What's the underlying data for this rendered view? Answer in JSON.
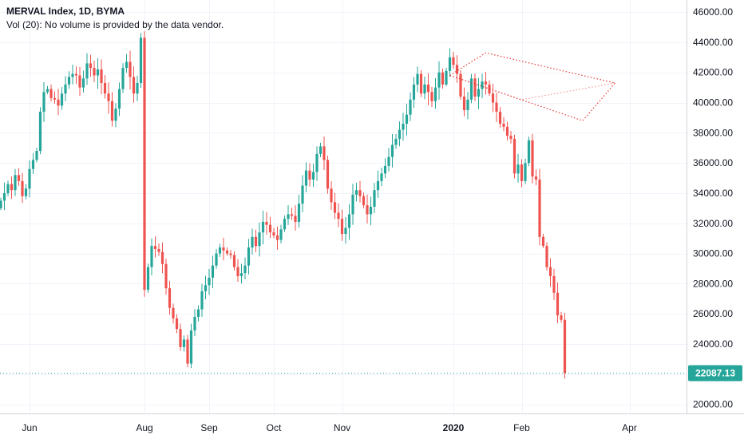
{
  "header": {
    "symbol_line": "MERVAL Index, 1D, BYMA",
    "volume_line": "Vol (20): No volume is provided by the data vendor."
  },
  "price_tag": {
    "label": "22087.13",
    "value": 22087.13,
    "color": "#26a69a"
  },
  "colors": {
    "up": "#26a69a",
    "down": "#ef5350",
    "pattern": "#e53935",
    "grid": "#f0f3fa",
    "axis_text": "#131722"
  },
  "pattern": {
    "name": "diamond-pattern",
    "points": [
      [
        125,
        41800
      ],
      [
        135,
        43300
      ],
      [
        145,
        40200
      ],
      [
        162,
        38800
      ],
      [
        171,
        41300
      ]
    ]
  },
  "chart_data": {
    "type": "candlestick",
    "title": "MERVAL Index, 1D, BYMA",
    "ylim": [
      19400,
      46800
    ],
    "y_ticks": [
      20000,
      22000,
      24000,
      26000,
      28000,
      30000,
      32000,
      34000,
      36000,
      38000,
      40000,
      42000,
      44000,
      46000
    ],
    "y_tick_labels": [
      "20000.00",
      "22000.00",
      "24000.00",
      "26000.00",
      "28000.00",
      "30000.00",
      "32000.00",
      "34000.00",
      "36000.00",
      "38000.00",
      "40000.00",
      "42000.00",
      "44000.00",
      "46000.00"
    ],
    "x_ticks": [
      {
        "label": "Jun",
        "index": 8
      },
      {
        "label": "Aug",
        "index": 40
      },
      {
        "label": "Sep",
        "index": 58
      },
      {
        "label": "Oct",
        "index": 76
      },
      {
        "label": "Nov",
        "index": 95
      },
      {
        "label": "2020",
        "index": 126
      },
      {
        "label": "Feb",
        "index": 145
      },
      {
        "label": "Apr",
        "index": 175
      }
    ],
    "last_value": 22087.13,
    "close": [
      33500,
      34000,
      34600,
      34200,
      35200,
      34800,
      33800,
      34300,
      35600,
      36200,
      36800,
      39400,
      40700,
      40900,
      40300,
      40200,
      39800,
      40600,
      41200,
      41700,
      41900,
      41800,
      41000,
      41600,
      42600,
      42300,
      41800,
      42200,
      41300,
      40600,
      40100,
      38800,
      39600,
      40900,
      42300,
      42700,
      41700,
      40600,
      41300,
      44300,
      27600,
      29100,
      30500,
      30300,
      30100,
      29300,
      27700,
      26400,
      25700,
      25000,
      23800,
      24300,
      22700,
      24900,
      25800,
      26300,
      27500,
      27900,
      28400,
      29200,
      30000,
      30400,
      30200,
      30000,
      29900,
      29100,
      28500,
      28700,
      29200,
      30400,
      31100,
      30500,
      31400,
      32100,
      31900,
      31400,
      31200,
      30900,
      31600,
      32300,
      32600,
      32500,
      32100,
      33300,
      34500,
      35500,
      34900,
      35400,
      36600,
      37100,
      36200,
      34300,
      33400,
      32700,
      32300,
      31300,
      31700,
      32600,
      33900,
      34200,
      33800,
      33200,
      32600,
      33100,
      34200,
      34800,
      35300,
      35800,
      36400,
      37200,
      37600,
      38200,
      38600,
      39200,
      40200,
      41200,
      41900,
      40600,
      41200,
      40700,
      40100,
      41000,
      42000,
      41200,
      42100,
      43000,
      42500,
      41900,
      40400,
      39500,
      40200,
      41600,
      40400,
      40900,
      41400,
      41200,
      40600,
      40000,
      39400,
      38600,
      38400,
      37800,
      37600,
      35300,
      35900,
      34800,
      36000,
      37500,
      35100,
      34900,
      31100,
      30500,
      29100,
      28500,
      27400,
      25900,
      25600,
      22087.13
    ]
  }
}
